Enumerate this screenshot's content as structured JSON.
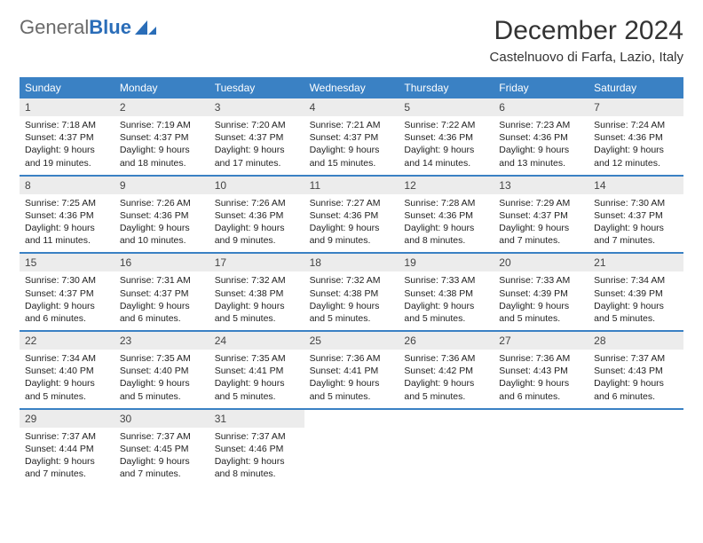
{
  "brand": {
    "name_part1": "General",
    "name_part2": "Blue",
    "color_gray": "#6a6a6a",
    "color_blue": "#2a6db8"
  },
  "header": {
    "title": "December 2024",
    "location": "Castelnuovo di Farfa, Lazio, Italy"
  },
  "calendar": {
    "header_bg": "#3a81c4",
    "header_fg": "#ffffff",
    "daynum_bg": "#ececec",
    "rule_color": "#3a81c4",
    "weekdays": [
      "Sunday",
      "Monday",
      "Tuesday",
      "Wednesday",
      "Thursday",
      "Friday",
      "Saturday"
    ],
    "weeks": [
      [
        {
          "num": "1",
          "sunrise": "Sunrise: 7:18 AM",
          "sunset": "Sunset: 4:37 PM",
          "day1": "Daylight: 9 hours",
          "day2": "and 19 minutes."
        },
        {
          "num": "2",
          "sunrise": "Sunrise: 7:19 AM",
          "sunset": "Sunset: 4:37 PM",
          "day1": "Daylight: 9 hours",
          "day2": "and 18 minutes."
        },
        {
          "num": "3",
          "sunrise": "Sunrise: 7:20 AM",
          "sunset": "Sunset: 4:37 PM",
          "day1": "Daylight: 9 hours",
          "day2": "and 17 minutes."
        },
        {
          "num": "4",
          "sunrise": "Sunrise: 7:21 AM",
          "sunset": "Sunset: 4:37 PM",
          "day1": "Daylight: 9 hours",
          "day2": "and 15 minutes."
        },
        {
          "num": "5",
          "sunrise": "Sunrise: 7:22 AM",
          "sunset": "Sunset: 4:36 PM",
          "day1": "Daylight: 9 hours",
          "day2": "and 14 minutes."
        },
        {
          "num": "6",
          "sunrise": "Sunrise: 7:23 AM",
          "sunset": "Sunset: 4:36 PM",
          "day1": "Daylight: 9 hours",
          "day2": "and 13 minutes."
        },
        {
          "num": "7",
          "sunrise": "Sunrise: 7:24 AM",
          "sunset": "Sunset: 4:36 PM",
          "day1": "Daylight: 9 hours",
          "day2": "and 12 minutes."
        }
      ],
      [
        {
          "num": "8",
          "sunrise": "Sunrise: 7:25 AM",
          "sunset": "Sunset: 4:36 PM",
          "day1": "Daylight: 9 hours",
          "day2": "and 11 minutes."
        },
        {
          "num": "9",
          "sunrise": "Sunrise: 7:26 AM",
          "sunset": "Sunset: 4:36 PM",
          "day1": "Daylight: 9 hours",
          "day2": "and 10 minutes."
        },
        {
          "num": "10",
          "sunrise": "Sunrise: 7:26 AM",
          "sunset": "Sunset: 4:36 PM",
          "day1": "Daylight: 9 hours",
          "day2": "and 9 minutes."
        },
        {
          "num": "11",
          "sunrise": "Sunrise: 7:27 AM",
          "sunset": "Sunset: 4:36 PM",
          "day1": "Daylight: 9 hours",
          "day2": "and 9 minutes."
        },
        {
          "num": "12",
          "sunrise": "Sunrise: 7:28 AM",
          "sunset": "Sunset: 4:36 PM",
          "day1": "Daylight: 9 hours",
          "day2": "and 8 minutes."
        },
        {
          "num": "13",
          "sunrise": "Sunrise: 7:29 AM",
          "sunset": "Sunset: 4:37 PM",
          "day1": "Daylight: 9 hours",
          "day2": "and 7 minutes."
        },
        {
          "num": "14",
          "sunrise": "Sunrise: 7:30 AM",
          "sunset": "Sunset: 4:37 PM",
          "day1": "Daylight: 9 hours",
          "day2": "and 7 minutes."
        }
      ],
      [
        {
          "num": "15",
          "sunrise": "Sunrise: 7:30 AM",
          "sunset": "Sunset: 4:37 PM",
          "day1": "Daylight: 9 hours",
          "day2": "and 6 minutes."
        },
        {
          "num": "16",
          "sunrise": "Sunrise: 7:31 AM",
          "sunset": "Sunset: 4:37 PM",
          "day1": "Daylight: 9 hours",
          "day2": "and 6 minutes."
        },
        {
          "num": "17",
          "sunrise": "Sunrise: 7:32 AM",
          "sunset": "Sunset: 4:38 PM",
          "day1": "Daylight: 9 hours",
          "day2": "and 5 minutes."
        },
        {
          "num": "18",
          "sunrise": "Sunrise: 7:32 AM",
          "sunset": "Sunset: 4:38 PM",
          "day1": "Daylight: 9 hours",
          "day2": "and 5 minutes."
        },
        {
          "num": "19",
          "sunrise": "Sunrise: 7:33 AM",
          "sunset": "Sunset: 4:38 PM",
          "day1": "Daylight: 9 hours",
          "day2": "and 5 minutes."
        },
        {
          "num": "20",
          "sunrise": "Sunrise: 7:33 AM",
          "sunset": "Sunset: 4:39 PM",
          "day1": "Daylight: 9 hours",
          "day2": "and 5 minutes."
        },
        {
          "num": "21",
          "sunrise": "Sunrise: 7:34 AM",
          "sunset": "Sunset: 4:39 PM",
          "day1": "Daylight: 9 hours",
          "day2": "and 5 minutes."
        }
      ],
      [
        {
          "num": "22",
          "sunrise": "Sunrise: 7:34 AM",
          "sunset": "Sunset: 4:40 PM",
          "day1": "Daylight: 9 hours",
          "day2": "and 5 minutes."
        },
        {
          "num": "23",
          "sunrise": "Sunrise: 7:35 AM",
          "sunset": "Sunset: 4:40 PM",
          "day1": "Daylight: 9 hours",
          "day2": "and 5 minutes."
        },
        {
          "num": "24",
          "sunrise": "Sunrise: 7:35 AM",
          "sunset": "Sunset: 4:41 PM",
          "day1": "Daylight: 9 hours",
          "day2": "and 5 minutes."
        },
        {
          "num": "25",
          "sunrise": "Sunrise: 7:36 AM",
          "sunset": "Sunset: 4:41 PM",
          "day1": "Daylight: 9 hours",
          "day2": "and 5 minutes."
        },
        {
          "num": "26",
          "sunrise": "Sunrise: 7:36 AM",
          "sunset": "Sunset: 4:42 PM",
          "day1": "Daylight: 9 hours",
          "day2": "and 5 minutes."
        },
        {
          "num": "27",
          "sunrise": "Sunrise: 7:36 AM",
          "sunset": "Sunset: 4:43 PM",
          "day1": "Daylight: 9 hours",
          "day2": "and 6 minutes."
        },
        {
          "num": "28",
          "sunrise": "Sunrise: 7:37 AM",
          "sunset": "Sunset: 4:43 PM",
          "day1": "Daylight: 9 hours",
          "day2": "and 6 minutes."
        }
      ],
      [
        {
          "num": "29",
          "sunrise": "Sunrise: 7:37 AM",
          "sunset": "Sunset: 4:44 PM",
          "day1": "Daylight: 9 hours",
          "day2": "and 7 minutes."
        },
        {
          "num": "30",
          "sunrise": "Sunrise: 7:37 AM",
          "sunset": "Sunset: 4:45 PM",
          "day1": "Daylight: 9 hours",
          "day2": "and 7 minutes."
        },
        {
          "num": "31",
          "sunrise": "Sunrise: 7:37 AM",
          "sunset": "Sunset: 4:46 PM",
          "day1": "Daylight: 9 hours",
          "day2": "and 8 minutes."
        },
        {
          "empty": true
        },
        {
          "empty": true
        },
        {
          "empty": true
        },
        {
          "empty": true
        }
      ]
    ]
  }
}
